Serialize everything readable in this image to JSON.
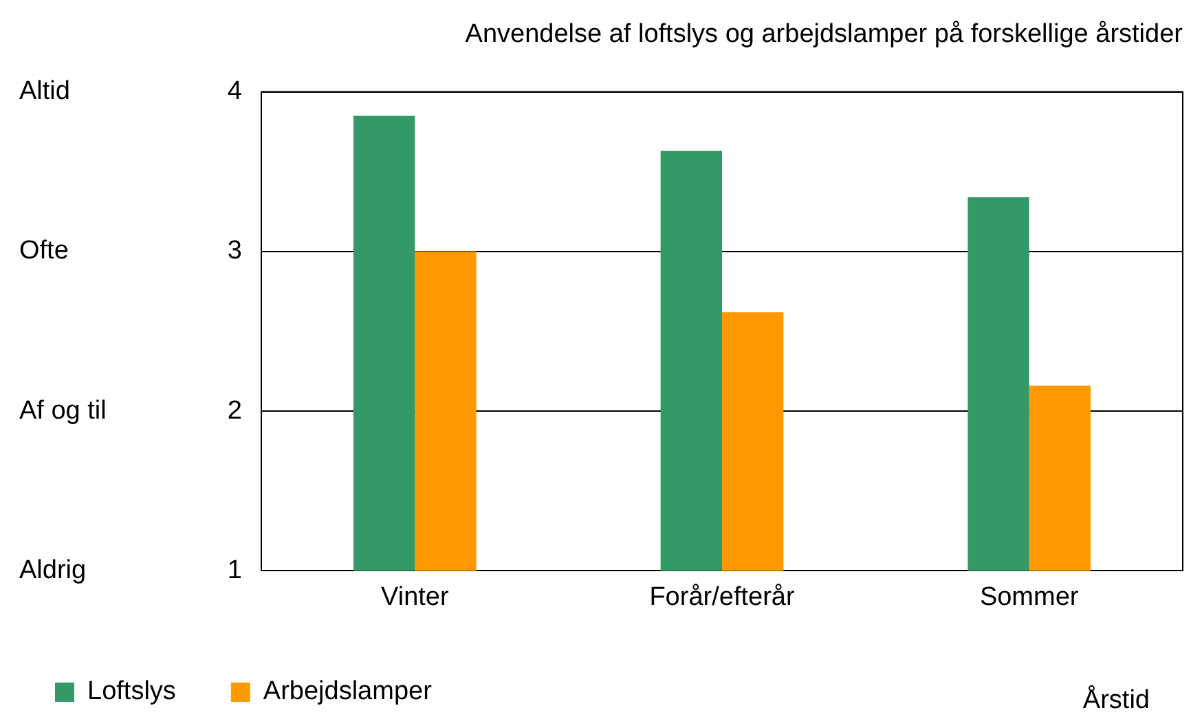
{
  "chart_data": {
    "type": "bar",
    "title": "Anvendelse af loftslys og arbejdslamper på forskellige årstider",
    "xlabel": "Årstid",
    "categories": [
      "Vinter",
      "Forår/efterår",
      "Sommer"
    ],
    "series": [
      {
        "name": "Loftslys",
        "color": "#339966",
        "values": [
          3.85,
          3.63,
          3.34
        ]
      },
      {
        "name": "Arbejdslamper",
        "color": "#ff9900",
        "values": [
          3.0,
          2.62,
          2.16
        ]
      }
    ],
    "ylim": [
      1,
      4
    ],
    "yticks": [
      1,
      2,
      3,
      4
    ],
    "annotations": [
      "Aldrig",
      "Af og til",
      "Ofte",
      "Altid"
    ],
    "grid": "y",
    "legend": "bottom left"
  }
}
